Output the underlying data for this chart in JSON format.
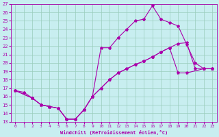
{
  "xlabel": "Windchill (Refroidissement éolien,°C)",
  "xlim": [
    -0.5,
    23.5
  ],
  "ylim": [
    13,
    27
  ],
  "xticks": [
    0,
    1,
    2,
    3,
    4,
    5,
    6,
    7,
    8,
    9,
    10,
    11,
    12,
    13,
    14,
    15,
    16,
    17,
    18,
    19,
    20,
    21,
    22,
    23
  ],
  "yticks": [
    13,
    14,
    15,
    16,
    17,
    18,
    19,
    20,
    21,
    22,
    23,
    24,
    25,
    26,
    27
  ],
  "bg_color": "#c8eef0",
  "line_color": "#aa00aa",
  "grid_color": "#99ccbb",
  "line1_x": [
    0,
    1,
    2,
    3,
    4,
    5,
    6,
    7,
    8,
    9,
    10,
    11,
    12,
    13,
    14,
    15,
    16,
    17,
    18,
    19,
    20,
    21,
    22,
    23
  ],
  "line1_y": [
    16.7,
    16.5,
    15.8,
    15.0,
    14.8,
    14.6,
    13.3,
    13.3,
    14.4,
    16.0,
    21.8,
    21.8,
    23.0,
    24.0,
    25.0,
    25.2,
    26.8,
    25.2,
    24.8,
    24.4,
    22.2,
    20.0,
    19.3,
    19.3
  ],
  "line2_x": [
    0,
    2,
    3,
    4,
    5,
    6,
    7,
    8,
    9,
    10,
    11,
    12,
    13,
    14,
    15,
    16,
    17,
    18,
    19,
    20,
    21,
    22,
    23
  ],
  "line2_y": [
    16.7,
    15.8,
    15.0,
    14.8,
    14.6,
    13.3,
    13.3,
    14.4,
    16.0,
    17.0,
    18.0,
    18.8,
    19.3,
    19.8,
    20.2,
    20.7,
    21.3,
    21.8,
    22.3,
    22.4,
    19.3,
    19.3,
    19.3
  ],
  "line3_x": [
    0,
    2,
    3,
    4,
    5,
    6,
    7,
    8,
    9,
    10,
    11,
    12,
    13,
    14,
    15,
    16,
    17,
    18,
    19,
    20,
    22,
    23
  ],
  "line3_y": [
    16.7,
    15.8,
    15.0,
    14.8,
    14.6,
    13.3,
    13.3,
    14.4,
    16.0,
    17.0,
    18.0,
    18.8,
    19.3,
    19.8,
    20.2,
    20.7,
    21.3,
    21.8,
    18.8,
    18.8,
    19.3,
    19.3
  ]
}
